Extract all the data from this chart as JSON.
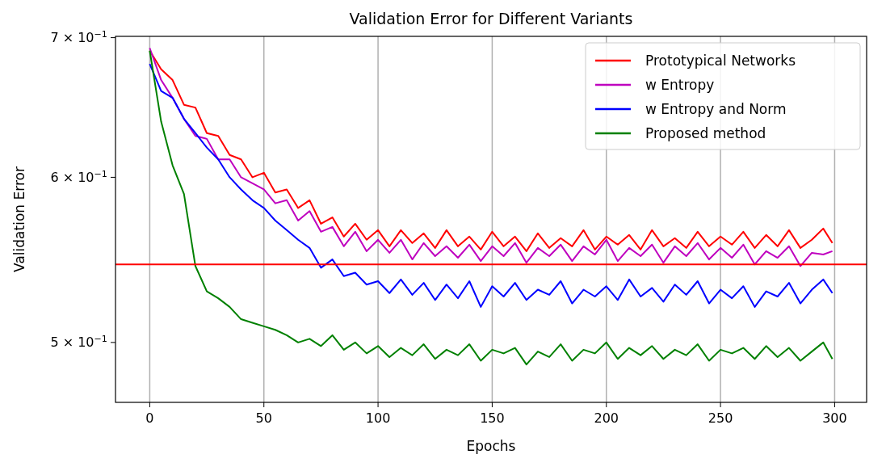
{
  "chart_data": {
    "type": "line",
    "title": "Validation Error for Different Variants",
    "xlabel": "Epochs",
    "ylabel": "Validation Error",
    "x": [
      0,
      5,
      10,
      15,
      20,
      25,
      30,
      35,
      40,
      45,
      50,
      55,
      60,
      65,
      70,
      75,
      80,
      85,
      90,
      95,
      100,
      105,
      110,
      115,
      120,
      125,
      130,
      135,
      140,
      145,
      150,
      155,
      160,
      165,
      170,
      175,
      180,
      185,
      190,
      195,
      200,
      205,
      210,
      215,
      220,
      225,
      230,
      235,
      240,
      245,
      250,
      255,
      260,
      265,
      270,
      275,
      280,
      285,
      290,
      295,
      299
    ],
    "series": [
      {
        "name": "Prototypical Networks",
        "color": "#ff0000",
        "values": [
          0.69,
          0.676,
          0.668,
          0.65,
          0.648,
          0.63,
          0.628,
          0.615,
          0.612,
          0.6,
          0.603,
          0.59,
          0.592,
          0.58,
          0.585,
          0.57,
          0.574,
          0.562,
          0.57,
          0.56,
          0.566,
          0.556,
          0.566,
          0.558,
          0.564,
          0.555,
          0.566,
          0.556,
          0.562,
          0.554,
          0.565,
          0.556,
          0.562,
          0.553,
          0.564,
          0.555,
          0.561,
          0.556,
          0.566,
          0.554,
          0.562,
          0.557,
          0.563,
          0.554,
          0.566,
          0.556,
          0.561,
          0.555,
          0.565,
          0.556,
          0.562,
          0.557,
          0.565,
          0.555,
          0.563,
          0.556,
          0.566,
          0.555,
          0.56,
          0.567,
          0.558
        ]
      },
      {
        "name": "w Entropy",
        "color": "#bf00bf",
        "values": [
          0.692,
          0.668,
          0.655,
          0.64,
          0.628,
          0.626,
          0.612,
          0.612,
          0.6,
          0.596,
          0.592,
          0.583,
          0.585,
          0.572,
          0.578,
          0.565,
          0.568,
          0.556,
          0.565,
          0.553,
          0.56,
          0.552,
          0.56,
          0.548,
          0.558,
          0.55,
          0.556,
          0.549,
          0.557,
          0.547,
          0.556,
          0.55,
          0.558,
          0.546,
          0.555,
          0.55,
          0.557,
          0.547,
          0.556,
          0.551,
          0.56,
          0.547,
          0.555,
          0.55,
          0.557,
          0.546,
          0.556,
          0.55,
          0.558,
          0.548,
          0.555,
          0.549,
          0.557,
          0.545,
          0.553,
          0.549,
          0.556,
          0.544,
          0.552,
          0.551,
          0.553
        ]
      },
      {
        "name": "w Entropy and Norm",
        "color": "#0000ff",
        "values": [
          0.68,
          0.66,
          0.655,
          0.64,
          0.63,
          0.62,
          0.612,
          0.6,
          0.592,
          0.585,
          0.58,
          0.572,
          0.566,
          0.56,
          0.555,
          0.543,
          0.548,
          0.538,
          0.54,
          0.533,
          0.535,
          0.528,
          0.536,
          0.527,
          0.534,
          0.524,
          0.533,
          0.525,
          0.535,
          0.52,
          0.532,
          0.526,
          0.534,
          0.524,
          0.53,
          0.527,
          0.535,
          0.522,
          0.53,
          0.526,
          0.532,
          0.524,
          0.536,
          0.526,
          0.531,
          0.523,
          0.533,
          0.527,
          0.535,
          0.522,
          0.53,
          0.525,
          0.532,
          0.52,
          0.529,
          0.526,
          0.534,
          0.522,
          0.53,
          0.536,
          0.528
        ]
      },
      {
        "name": "Proposed method",
        "color": "#008000",
        "values": [
          0.69,
          0.638,
          0.608,
          0.589,
          0.544,
          0.529,
          0.525,
          0.52,
          0.513,
          0.511,
          0.509,
          0.507,
          0.504,
          0.5,
          0.502,
          0.498,
          0.504,
          0.496,
          0.5,
          0.494,
          0.498,
          0.492,
          0.497,
          0.493,
          0.499,
          0.491,
          0.496,
          0.493,
          0.499,
          0.49,
          0.496,
          0.494,
          0.497,
          0.488,
          0.495,
          0.492,
          0.499,
          0.49,
          0.496,
          0.494,
          0.5,
          0.491,
          0.497,
          0.493,
          0.498,
          0.491,
          0.496,
          0.493,
          0.499,
          0.49,
          0.496,
          0.494,
          0.497,
          0.491,
          0.498,
          0.492,
          0.497,
          0.49,
          0.495,
          0.5,
          0.491
        ]
      }
    ],
    "xlim": [
      -15,
      314
    ],
    "xticks": [
      0,
      50,
      100,
      150,
      200,
      250,
      300
    ],
    "ylim": [
      0.468,
      0.701
    ],
    "yticks": [
      {
        "value": 0.5,
        "label": "5 × 10$^{−1}$"
      },
      {
        "value": 0.6,
        "label": "6 × 10$^{−1}$"
      },
      {
        "value": 0.7,
        "label": "7 × 10$^{−1}$"
      }
    ],
    "log": "y",
    "grid": "x",
    "legend": "top right",
    "line_style": "solid",
    "marker": "none",
    "ref_lines": [
      {
        "axis": "y",
        "value": 0.545,
        "color": "#ff0000"
      }
    ]
  }
}
